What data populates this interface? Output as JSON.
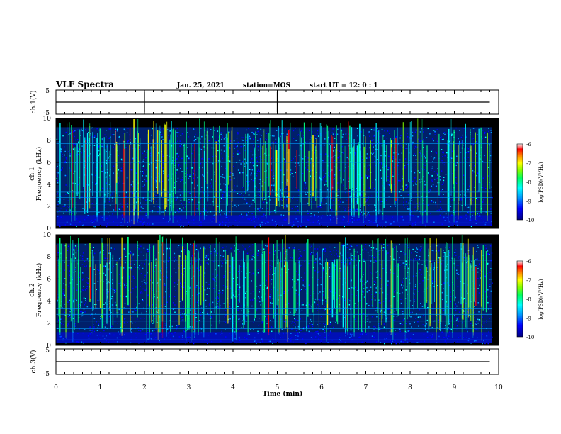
{
  "header": {
    "title": "VLF Spectra",
    "date": "Jan. 25, 2021",
    "station": "station=MOS",
    "start": "start UT =  12: 0 : 1"
  },
  "colors": {
    "background": "#000000",
    "frame": "#000000",
    "colormap": [
      "#000080",
      "#0000ff",
      "#00a0ff",
      "#00ffff",
      "#00ff80",
      "#80ff00",
      "#ffff00",
      "#ff8000",
      "#ff0000",
      "#ffffff"
    ]
  },
  "chart_data": [
    {
      "type": "line",
      "panel": "ch1-voltage",
      "ylabel": "ch.1(V)",
      "ylim": [
        -5,
        5
      ],
      "yticks": [
        "5",
        "-5"
      ],
      "xlim": [
        0,
        10
      ],
      "series": [
        {
          "x": [
            0,
            9.8
          ],
          "y": [
            0,
            0
          ]
        }
      ]
    },
    {
      "type": "heatmap",
      "panel": "ch1-spectrogram",
      "ylabel": "ch.1\nFrequency (kHz)",
      "ylim": [
        0,
        10
      ],
      "yticks": [
        "10",
        "8",
        "6",
        "4",
        "2",
        "0"
      ],
      "xlim": [
        0,
        10
      ],
      "colorbar": {
        "label": "log(PSD)(V²/Hz)",
        "range": [
          -10,
          -6
        ],
        "ticks": [
          "-6",
          "-7",
          "-8",
          "-9",
          "-10"
        ]
      }
    },
    {
      "type": "heatmap",
      "panel": "ch2-spectrogram",
      "ylabel": "ch.2\nFrequency (kHz)",
      "ylim": [
        0,
        10
      ],
      "yticks": [
        "10",
        "8",
        "6",
        "4",
        "2",
        "0"
      ],
      "xlim": [
        0,
        10
      ],
      "colorbar": {
        "label": "log(PSD)(V²/Hz)",
        "range": [
          -10,
          -6
        ],
        "ticks": [
          "-6",
          "-7",
          "-8",
          "-9",
          "-10"
        ]
      }
    },
    {
      "type": "line",
      "panel": "ch3-voltage",
      "ylabel": "ch.3(V)",
      "ylim": [
        -5,
        5
      ],
      "yticks": [
        "5",
        "-5"
      ],
      "xlim": [
        0,
        10
      ],
      "series": [
        {
          "x": [
            0,
            9.8
          ],
          "y": [
            0,
            0
          ]
        }
      ]
    }
  ],
  "xaxis": {
    "label": "Time (min)",
    "ticks": [
      "0",
      "1",
      "2",
      "3",
      "4",
      "5",
      "6",
      "7",
      "8",
      "9",
      "10"
    ]
  }
}
